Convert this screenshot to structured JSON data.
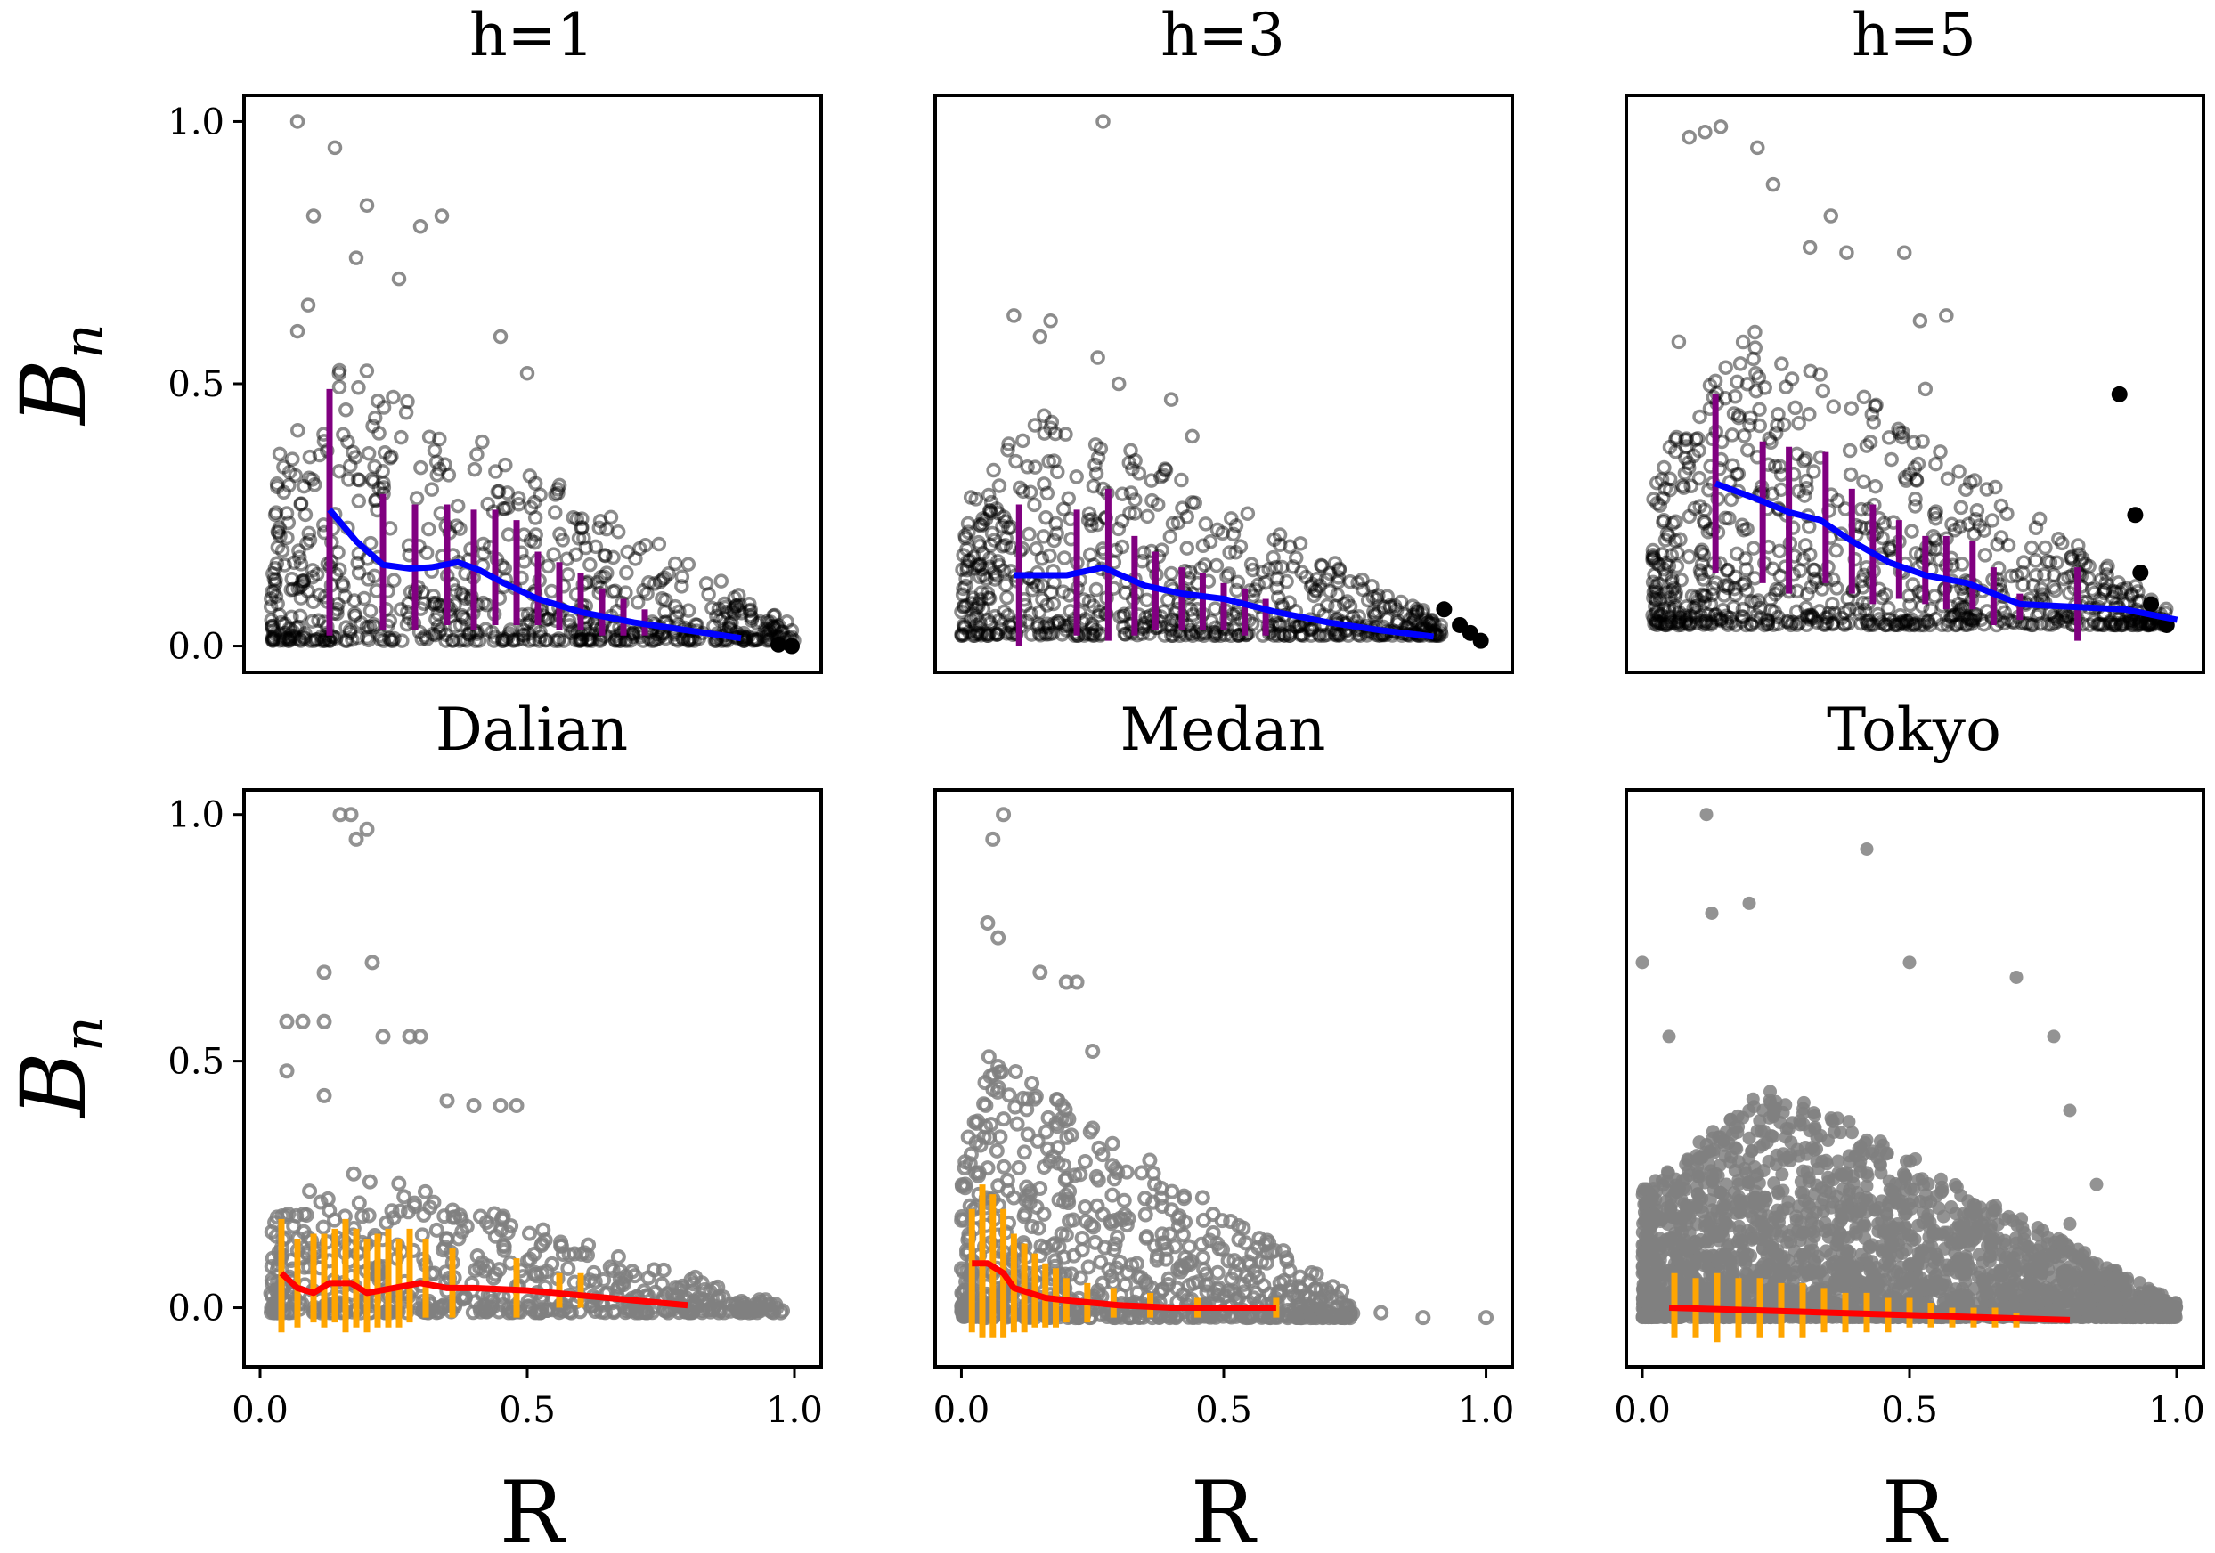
{
  "figure": {
    "column_titles": [
      "h=1",
      "h=3",
      "h=5"
    ],
    "row2_titles": [
      "Dalian",
      "Medan",
      "Tokyo"
    ],
    "ylabel_main": "B",
    "ylabel_sub": "n",
    "xlabel": "R",
    "x_ticks": [
      "0.0",
      "0.5",
      "1.0"
    ],
    "y_ticks": [
      "0.0",
      "0.5",
      "1.0"
    ]
  },
  "colors": {
    "top_points": "#000000",
    "top_error_bars": "#800080",
    "top_mean_line": "#0000ff",
    "bottom_points": "#808080",
    "bottom_error_bars": "#ffa500",
    "bottom_mean_line": "#ff0000"
  },
  "chart_data": [
    {
      "type": "scatter",
      "panel": "top-left",
      "title": "h=1",
      "xlim": [
        -0.03,
        1.05
      ],
      "ylim": [
        -0.05,
        1.05
      ],
      "point_style": "black-ring",
      "mean_line": {
        "x": [
          0.13,
          0.18,
          0.23,
          0.28,
          0.32,
          0.37,
          0.41,
          0.46,
          0.52,
          0.6,
          0.7,
          0.8,
          0.9
        ],
        "y": [
          0.26,
          0.2,
          0.155,
          0.148,
          0.15,
          0.16,
          0.145,
          0.118,
          0.09,
          0.065,
          0.045,
          0.03,
          0.015
        ]
      },
      "error_bars": [
        {
          "x": 0.13,
          "lo": 0.02,
          "hi": 0.49
        },
        {
          "x": 0.23,
          "lo": 0.03,
          "hi": 0.29
        },
        {
          "x": 0.29,
          "lo": 0.03,
          "hi": 0.27
        },
        {
          "x": 0.35,
          "lo": 0.04,
          "hi": 0.27
        },
        {
          "x": 0.4,
          "lo": 0.03,
          "hi": 0.26
        },
        {
          "x": 0.44,
          "lo": 0.04,
          "hi": 0.26
        },
        {
          "x": 0.48,
          "lo": 0.04,
          "hi": 0.24
        },
        {
          "x": 0.52,
          "lo": 0.04,
          "hi": 0.18
        },
        {
          "x": 0.56,
          "lo": 0.03,
          "hi": 0.16
        },
        {
          "x": 0.6,
          "lo": 0.03,
          "hi": 0.14
        },
        {
          "x": 0.64,
          "lo": 0.02,
          "hi": 0.11
        },
        {
          "x": 0.68,
          "lo": 0.02,
          "hi": 0.09
        },
        {
          "x": 0.72,
          "lo": 0.02,
          "hi": 0.07
        }
      ],
      "outliers": [
        [
          0.07,
          1.0
        ],
        [
          0.14,
          0.95
        ],
        [
          0.1,
          0.82
        ],
        [
          0.2,
          0.84
        ],
        [
          0.3,
          0.8
        ],
        [
          0.34,
          0.82
        ],
        [
          0.45,
          0.59
        ],
        [
          0.5,
          0.52
        ],
        [
          0.09,
          0.65
        ],
        [
          0.07,
          0.6
        ],
        [
          0.26,
          0.7
        ],
        [
          0.18,
          0.74
        ]
      ],
      "cloud": {
        "x_start": 0.02,
        "x_end": 1.0,
        "peak_x": 0.15,
        "peak": 0.55,
        "floor": 0.01,
        "n": 700
      },
      "solid_points": [
        [
          0.97,
          0.003
        ],
        [
          0.995,
          0.0
        ]
      ]
    },
    {
      "type": "scatter",
      "panel": "top-middle",
      "title": "h=3",
      "xlim": [
        -0.05,
        1.05
      ],
      "ylim": [
        -0.05,
        1.05
      ],
      "point_style": "black-ring",
      "mean_line": {
        "x": [
          0.1,
          0.2,
          0.27,
          0.35,
          0.42,
          0.5,
          0.6,
          0.7,
          0.8,
          0.9
        ],
        "y": [
          0.135,
          0.135,
          0.15,
          0.115,
          0.1,
          0.09,
          0.065,
          0.045,
          0.03,
          0.018
        ]
      },
      "error_bars": [
        {
          "x": 0.11,
          "lo": 0.0,
          "hi": 0.27
        },
        {
          "x": 0.22,
          "lo": 0.02,
          "hi": 0.26
        },
        {
          "x": 0.28,
          "lo": 0.01,
          "hi": 0.3
        },
        {
          "x": 0.33,
          "lo": 0.02,
          "hi": 0.21
        },
        {
          "x": 0.37,
          "lo": 0.03,
          "hi": 0.18
        },
        {
          "x": 0.42,
          "lo": 0.03,
          "hi": 0.15
        },
        {
          "x": 0.46,
          "lo": 0.03,
          "hi": 0.14
        },
        {
          "x": 0.5,
          "lo": 0.03,
          "hi": 0.12
        },
        {
          "x": 0.54,
          "lo": 0.02,
          "hi": 0.11
        },
        {
          "x": 0.58,
          "lo": 0.02,
          "hi": 0.09
        }
      ],
      "outliers": [
        [
          0.27,
          1.0
        ],
        [
          0.1,
          0.63
        ],
        [
          0.17,
          0.62
        ],
        [
          0.15,
          0.59
        ],
        [
          0.26,
          0.55
        ],
        [
          0.3,
          0.5
        ],
        [
          0.4,
          0.47
        ],
        [
          0.44,
          0.4
        ]
      ],
      "cloud": {
        "x_start": 0.0,
        "x_end": 0.92,
        "peak_x": 0.15,
        "peak": 0.45,
        "floor": 0.02,
        "n": 650
      },
      "solid_points": [
        [
          0.92,
          0.07
        ],
        [
          0.95,
          0.04
        ],
        [
          0.97,
          0.025
        ],
        [
          0.99,
          0.01
        ]
      ]
    },
    {
      "type": "scatter",
      "panel": "top-right",
      "title": "h=5",
      "xlim": [
        -0.05,
        1.05
      ],
      "ylim": [
        -0.05,
        1.05
      ],
      "point_style": "black-ring",
      "mean_line": {
        "x": [
          0.12,
          0.2,
          0.26,
          0.32,
          0.38,
          0.45,
          0.52,
          0.6,
          0.7,
          0.8,
          0.9,
          1.0
        ],
        "y": [
          0.31,
          0.28,
          0.255,
          0.24,
          0.2,
          0.16,
          0.135,
          0.12,
          0.08,
          0.075,
          0.07,
          0.05
        ]
      },
      "error_bars": [
        {
          "x": 0.12,
          "lo": 0.14,
          "hi": 0.48
        },
        {
          "x": 0.21,
          "lo": 0.12,
          "hi": 0.39
        },
        {
          "x": 0.26,
          "lo": 0.1,
          "hi": 0.38
        },
        {
          "x": 0.33,
          "lo": 0.12,
          "hi": 0.37
        },
        {
          "x": 0.38,
          "lo": 0.1,
          "hi": 0.3
        },
        {
          "x": 0.42,
          "lo": 0.08,
          "hi": 0.27
        },
        {
          "x": 0.47,
          "lo": 0.09,
          "hi": 0.24
        },
        {
          "x": 0.52,
          "lo": 0.08,
          "hi": 0.21
        },
        {
          "x": 0.56,
          "lo": 0.07,
          "hi": 0.21
        },
        {
          "x": 0.61,
          "lo": 0.07,
          "hi": 0.2
        },
        {
          "x": 0.65,
          "lo": 0.04,
          "hi": 0.15
        },
        {
          "x": 0.7,
          "lo": 0.05,
          "hi": 0.1
        },
        {
          "x": 0.81,
          "lo": 0.01,
          "hi": 0.15
        }
      ],
      "outliers": [
        [
          0.07,
          0.97
        ],
        [
          0.1,
          0.98
        ],
        [
          0.13,
          0.99
        ],
        [
          0.2,
          0.95
        ],
        [
          0.23,
          0.88
        ],
        [
          0.34,
          0.82
        ],
        [
          0.3,
          0.76
        ],
        [
          0.48,
          0.75
        ],
        [
          0.37,
          0.75
        ],
        [
          0.51,
          0.62
        ],
        [
          0.56,
          0.63
        ],
        [
          0.05,
          0.58
        ],
        [
          0.52,
          0.49
        ]
      ],
      "cloud": {
        "x_start": 0.0,
        "x_end": 0.98,
        "peak_x": 0.2,
        "peak": 0.58,
        "floor": 0.04,
        "n": 800
      },
      "solid_points": [
        [
          0.89,
          0.48
        ],
        [
          0.92,
          0.25
        ],
        [
          0.93,
          0.14
        ],
        [
          0.95,
          0.08
        ],
        [
          0.98,
          0.04
        ]
      ]
    },
    {
      "type": "scatter",
      "panel": "bottom-left",
      "title": "Dalian",
      "xlim": [
        -0.03,
        1.05
      ],
      "ylim": [
        -0.12,
        1.05
      ],
      "point_style": "gray-ring",
      "mean_line": {
        "x": [
          0.04,
          0.07,
          0.1,
          0.13,
          0.17,
          0.2,
          0.25,
          0.3,
          0.35,
          0.4,
          0.5,
          0.6,
          0.7,
          0.8
        ],
        "y": [
          0.07,
          0.04,
          0.03,
          0.05,
          0.05,
          0.03,
          0.04,
          0.05,
          0.04,
          0.04,
          0.035,
          0.025,
          0.015,
          0.005
        ]
      },
      "error_bars": [
        {
          "x": 0.04,
          "lo": -0.05,
          "hi": 0.18
        },
        {
          "x": 0.07,
          "lo": -0.04,
          "hi": 0.14
        },
        {
          "x": 0.1,
          "lo": -0.03,
          "hi": 0.15
        },
        {
          "x": 0.12,
          "lo": -0.04,
          "hi": 0.15
        },
        {
          "x": 0.14,
          "lo": -0.03,
          "hi": 0.16
        },
        {
          "x": 0.16,
          "lo": -0.05,
          "hi": 0.18
        },
        {
          "x": 0.18,
          "lo": -0.04,
          "hi": 0.16
        },
        {
          "x": 0.2,
          "lo": -0.05,
          "hi": 0.14
        },
        {
          "x": 0.22,
          "lo": -0.04,
          "hi": 0.15
        },
        {
          "x": 0.24,
          "lo": -0.04,
          "hi": 0.16
        },
        {
          "x": 0.26,
          "lo": -0.04,
          "hi": 0.14
        },
        {
          "x": 0.28,
          "lo": -0.03,
          "hi": 0.16
        },
        {
          "x": 0.31,
          "lo": -0.02,
          "hi": 0.14
        },
        {
          "x": 0.36,
          "lo": -0.02,
          "hi": 0.12
        },
        {
          "x": 0.48,
          "lo": -0.02,
          "hi": 0.1
        },
        {
          "x": 0.56,
          "lo": 0.0,
          "hi": 0.07
        },
        {
          "x": 0.6,
          "lo": 0.0,
          "hi": 0.07
        }
      ],
      "outliers": [
        [
          0.15,
          1.0
        ],
        [
          0.17,
          1.0
        ],
        [
          0.2,
          0.97
        ],
        [
          0.18,
          0.95
        ],
        [
          0.12,
          0.68
        ],
        [
          0.21,
          0.7
        ],
        [
          0.05,
          0.58
        ],
        [
          0.08,
          0.58
        ],
        [
          0.12,
          0.58
        ],
        [
          0.05,
          0.48
        ],
        [
          0.23,
          0.55
        ],
        [
          0.28,
          0.55
        ],
        [
          0.3,
          0.55
        ],
        [
          0.12,
          0.43
        ],
        [
          0.35,
          0.42
        ],
        [
          0.4,
          0.41
        ],
        [
          0.45,
          0.41
        ],
        [
          0.48,
          0.41
        ]
      ],
      "cloud": {
        "x_start": 0.02,
        "x_end": 0.98,
        "peak_x": 0.15,
        "peak": 0.3,
        "floor": -0.01,
        "n": 550
      },
      "solid_points": []
    },
    {
      "type": "scatter",
      "panel": "bottom-middle",
      "title": "Medan",
      "xlim": [
        -0.05,
        1.05
      ],
      "ylim": [
        -0.12,
        1.05
      ],
      "point_style": "gray-ring",
      "mean_line": {
        "x": [
          0.02,
          0.05,
          0.08,
          0.1,
          0.13,
          0.16,
          0.2,
          0.25,
          0.3,
          0.4,
          0.5,
          0.6
        ],
        "y": [
          0.09,
          0.09,
          0.07,
          0.04,
          0.03,
          0.02,
          0.015,
          0.01,
          0.005,
          0.0,
          0.0,
          0.0
        ]
      },
      "error_bars": [
        {
          "x": 0.02,
          "lo": -0.05,
          "hi": 0.2
        },
        {
          "x": 0.04,
          "lo": -0.06,
          "hi": 0.25
        },
        {
          "x": 0.06,
          "lo": -0.06,
          "hi": 0.23
        },
        {
          "x": 0.08,
          "lo": -0.06,
          "hi": 0.2
        },
        {
          "x": 0.1,
          "lo": -0.05,
          "hi": 0.15
        },
        {
          "x": 0.12,
          "lo": -0.05,
          "hi": 0.13
        },
        {
          "x": 0.14,
          "lo": -0.04,
          "hi": 0.11
        },
        {
          "x": 0.16,
          "lo": -0.04,
          "hi": 0.09
        },
        {
          "x": 0.18,
          "lo": -0.04,
          "hi": 0.08
        },
        {
          "x": 0.2,
          "lo": -0.03,
          "hi": 0.06
        },
        {
          "x": 0.24,
          "lo": -0.03,
          "hi": 0.05
        },
        {
          "x": 0.29,
          "lo": -0.02,
          "hi": 0.04
        },
        {
          "x": 0.36,
          "lo": -0.02,
          "hi": 0.03
        },
        {
          "x": 0.45,
          "lo": -0.02,
          "hi": 0.02
        },
        {
          "x": 0.6,
          "lo": -0.02,
          "hi": 0.02
        }
      ],
      "outliers": [
        [
          0.08,
          1.0
        ],
        [
          0.06,
          0.95
        ],
        [
          0.05,
          0.78
        ],
        [
          0.07,
          0.75
        ],
        [
          0.15,
          0.68
        ],
        [
          0.2,
          0.66
        ],
        [
          0.22,
          0.66
        ],
        [
          0.25,
          0.52
        ],
        [
          0.6,
          0.0
        ],
        [
          0.88,
          -0.02
        ],
        [
          1.0,
          -0.02
        ],
        [
          0.8,
          -0.01
        ]
      ],
      "cloud": {
        "x_start": 0.0,
        "x_end": 0.75,
        "peak_x": 0.05,
        "peak": 0.55,
        "floor": -0.02,
        "n": 750
      },
      "solid_points": []
    },
    {
      "type": "scatter",
      "panel": "bottom-right",
      "title": "Tokyo",
      "xlim": [
        -0.03,
        1.05
      ],
      "ylim": [
        -0.12,
        1.05
      ],
      "point_style": "gray-filled",
      "mean_line": {
        "x": [
          0.05,
          0.2,
          0.35,
          0.5,
          0.65,
          0.8
        ],
        "y": [
          0.0,
          -0.005,
          -0.01,
          -0.015,
          -0.02,
          -0.025
        ]
      },
      "error_bars": [
        {
          "x": 0.06,
          "lo": -0.06,
          "hi": 0.07
        },
        {
          "x": 0.1,
          "lo": -0.06,
          "hi": 0.06
        },
        {
          "x": 0.14,
          "lo": -0.07,
          "hi": 0.07
        },
        {
          "x": 0.18,
          "lo": -0.06,
          "hi": 0.06
        },
        {
          "x": 0.22,
          "lo": -0.06,
          "hi": 0.06
        },
        {
          "x": 0.26,
          "lo": -0.06,
          "hi": 0.05
        },
        {
          "x": 0.3,
          "lo": -0.06,
          "hi": 0.05
        },
        {
          "x": 0.34,
          "lo": -0.05,
          "hi": 0.04
        },
        {
          "x": 0.38,
          "lo": -0.05,
          "hi": 0.03
        },
        {
          "x": 0.42,
          "lo": -0.05,
          "hi": 0.03
        },
        {
          "x": 0.46,
          "lo": -0.05,
          "hi": 0.02
        },
        {
          "x": 0.5,
          "lo": -0.04,
          "hi": 0.02
        },
        {
          "x": 0.54,
          "lo": -0.04,
          "hi": 0.01
        },
        {
          "x": 0.58,
          "lo": -0.04,
          "hi": 0.0
        },
        {
          "x": 0.62,
          "lo": -0.04,
          "hi": 0.0
        },
        {
          "x": 0.66,
          "lo": -0.04,
          "hi": 0.0
        },
        {
          "x": 0.7,
          "lo": -0.04,
          "hi": -0.01
        }
      ],
      "outliers": [
        [
          0.12,
          1.0
        ],
        [
          0.13,
          0.8
        ],
        [
          0.2,
          0.82
        ],
        [
          0.42,
          0.93
        ],
        [
          0.5,
          0.7
        ],
        [
          0.7,
          0.67
        ],
        [
          0.77,
          0.55
        ],
        [
          0.8,
          0.4
        ],
        [
          0.85,
          0.25
        ],
        [
          0.8,
          0.17
        ],
        [
          0.82,
          0.1
        ],
        [
          0.0,
          0.7
        ],
        [
          0.05,
          0.55
        ]
      ],
      "cloud": {
        "x_start": 0.0,
        "x_end": 1.0,
        "peak_x": 0.25,
        "peak": 0.48,
        "floor": -0.02,
        "n": 2600
      },
      "solid_points": []
    }
  ]
}
